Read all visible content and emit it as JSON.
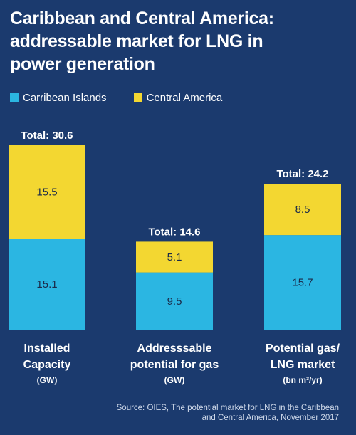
{
  "title_lines": [
    "Caribbean and Central America:",
    "addressable market for LNG in",
    "power generation"
  ],
  "legend": [
    {
      "label": "Carribean Islands",
      "color": "#2bb6e2"
    },
    {
      "label": "Central America",
      "color": "#f3d731"
    }
  ],
  "source_lines": [
    "Source: OIES, The potential market for LNG in the Caribbean",
    "and Central America, November 2017"
  ],
  "chart_data": {
    "type": "bar",
    "stacked": true,
    "categories": [
      {
        "lines": [
          "Installed",
          "Capacity"
        ],
        "unit": "(GW)"
      },
      {
        "lines": [
          "Addresssable",
          "potential for gas"
        ],
        "unit": "(GW)"
      },
      {
        "lines": [
          "Potential gas/",
          "LNG market"
        ],
        "unit": "(bn m³/yr)"
      }
    ],
    "series": [
      {
        "name": "Carribean Islands",
        "values": [
          15.1,
          9.5,
          15.7
        ],
        "color": "#2bb6e2"
      },
      {
        "name": "Central America",
        "values": [
          15.5,
          5.1,
          8.5
        ],
        "color": "#f3d731"
      }
    ],
    "value_labels": [
      [
        "15.1",
        "9.5",
        "15.7"
      ],
      [
        "15.5",
        "5.1",
        "8.5"
      ]
    ],
    "total_labels": [
      "Total: 30.6",
      "Total: 14.6",
      "Total: 24.2"
    ],
    "totals": [
      30.6,
      14.6,
      24.2
    ],
    "ylim": [
      0,
      30.6
    ],
    "grid": false,
    "axes_visible": false,
    "legend_position": "top-left"
  }
}
